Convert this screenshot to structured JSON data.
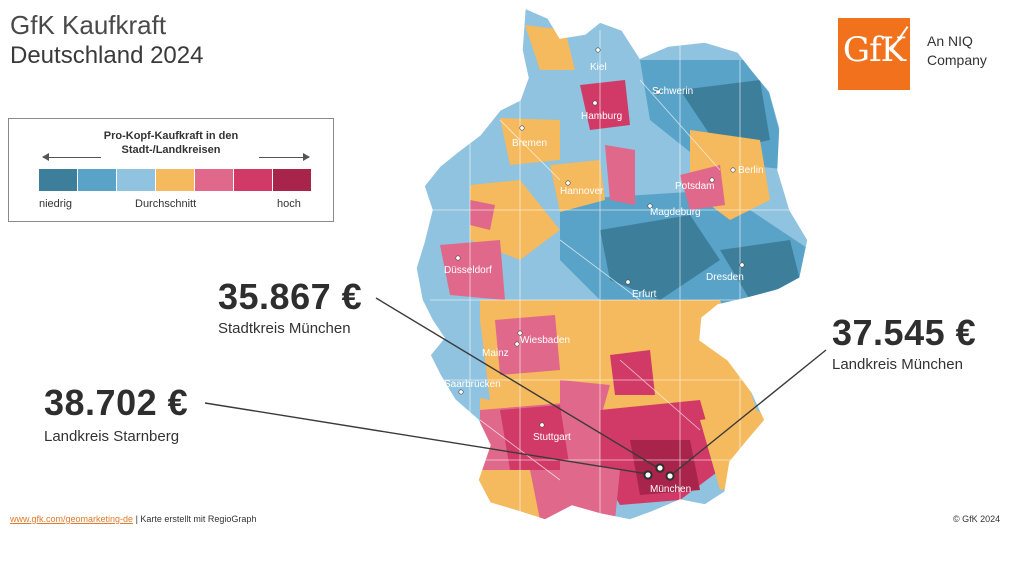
{
  "title": {
    "line1": "GfK Kaufkraft",
    "line2": "Deutschland 2024"
  },
  "logo": {
    "mark": "GfK",
    "tagline_line1": "An NIQ",
    "tagline_line2": "Company",
    "color": "#f2711c"
  },
  "legend": {
    "title_line1": "Pro-Kopf-Kaufkraft in den",
    "title_line2": "Stadt-/Landkreisen",
    "low": "niedrig",
    "mid": "Durchschnitt",
    "high": "hoch",
    "colors": [
      "#3d7f9b",
      "#5aa3c8",
      "#8fc3e0",
      "#f5b95e",
      "#e0688a",
      "#d13a66",
      "#a8244a"
    ]
  },
  "callouts": [
    {
      "value": "35.867 €",
      "label": "Stadtkreis München"
    },
    {
      "value": "37.545 €",
      "label": "Landkreis München"
    },
    {
      "value": "38.702 €",
      "label": "Landkreis Starnberg"
    }
  ],
  "cities": [
    "Kiel",
    "Schwerin",
    "Hamburg",
    "Bremen",
    "Berlin",
    "Hannover",
    "Potsdam",
    "Magdeburg",
    "Düsseldorf",
    "Dresden",
    "Erfurt",
    "Wiesbaden",
    "Mainz",
    "Saarbrücken",
    "Stuttgart",
    "München"
  ],
  "footer": {
    "link": "www.gfk.com/geomarketing-de",
    "text": " | Karte erstellt mit RegioGraph",
    "copyright": "© GfK 2024"
  }
}
